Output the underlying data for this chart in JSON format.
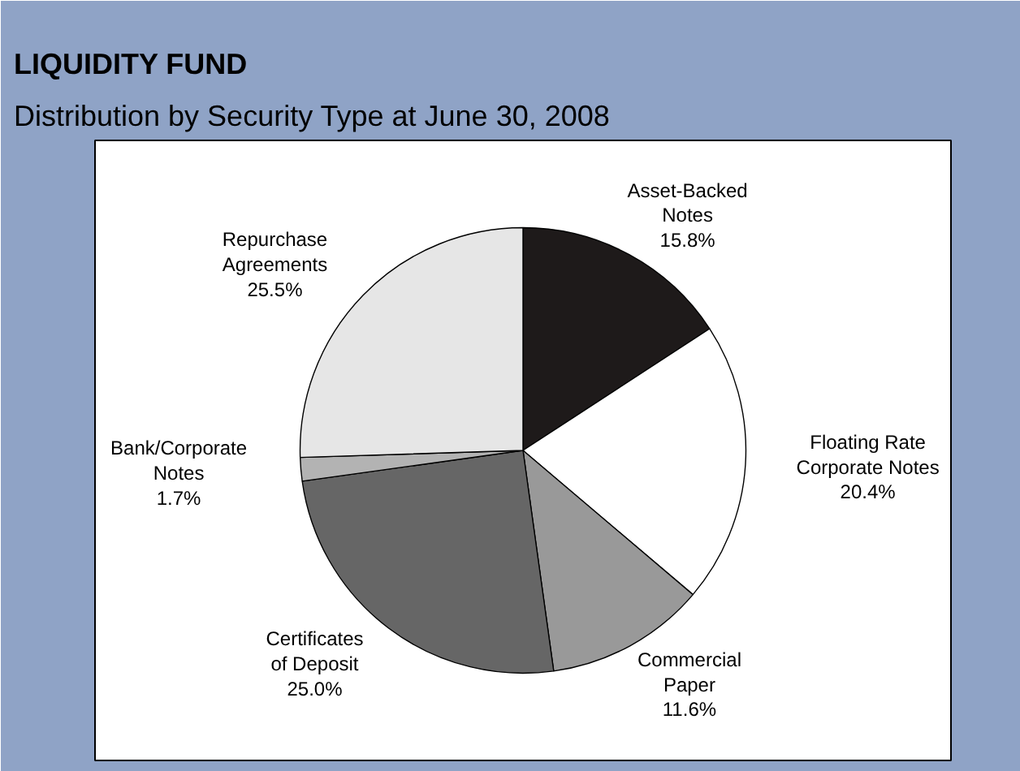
{
  "chart_data": {
    "type": "pie",
    "title": "LIQUIDITY FUND",
    "subtitle": "Distribution by Security Type at June 30, 2008",
    "categories": [
      "Asset-Backed\nNotes",
      "Floating Rate\nCorporate Notes",
      "Commercial\nPaper",
      "Certificates\nof Deposit",
      "Bank/Corporate\nNotes",
      "Repurchase\nAgreements"
    ],
    "values": [
      15.8,
      20.4,
      11.6,
      25.0,
      1.7,
      25.5
    ],
    "colors": [
      "#1e1a1a",
      "#ffffff",
      "#999999",
      "#666666",
      "#b3b3b3",
      "#e6e6e6"
    ],
    "value_labels": [
      "15.8%",
      "20.4%",
      "11.6%",
      "25.0%",
      "1.7%",
      "25.5%"
    ]
  }
}
